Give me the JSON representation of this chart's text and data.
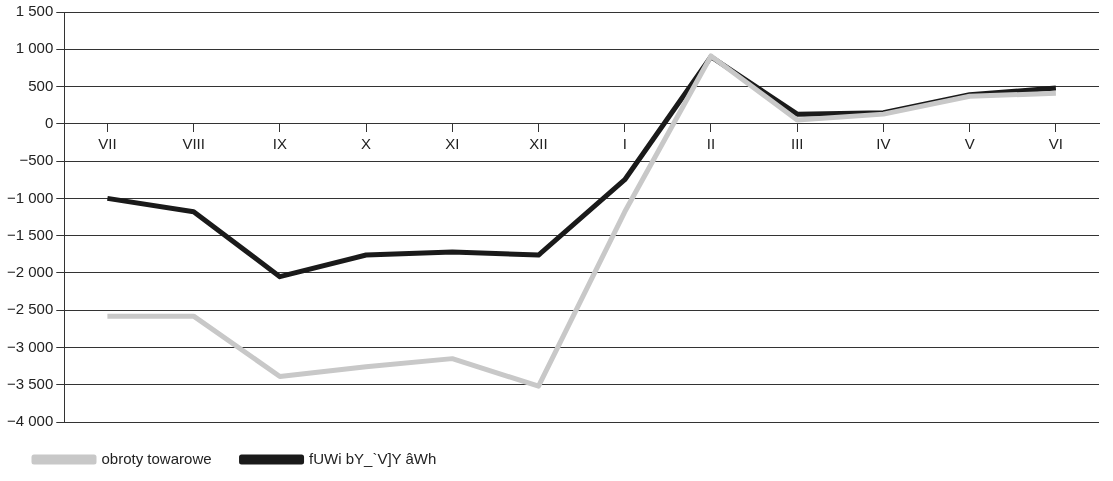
{
  "chart_data": {
    "type": "line",
    "categories": [
      "VII",
      "VIII",
      "IX",
      "X",
      "XI",
      "XII",
      "I",
      "II",
      "III",
      "IV",
      "V",
      "VI"
    ],
    "series": [
      {
        "name": "obroty towarowe",
        "color": "#c8c8c8",
        "values": [
          -2580,
          -2580,
          -3390,
          -3260,
          -3150,
          -3520,
          -1180,
          910,
          50,
          130,
          370,
          410
        ]
      },
      {
        "name": "fUWi bY_`V]Y âWh",
        "color": "#1a1a1a",
        "values": [
          -1000,
          -1180,
          -2050,
          -1760,
          -1720,
          -1760,
          -750,
          900,
          130,
          150,
          390,
          480
        ]
      }
    ],
    "ylim": [
      -4000,
      1500
    ],
    "yticks": [
      {
        "value": -4000,
        "label": "−4 000"
      },
      {
        "value": -3500,
        "label": "−3 500"
      },
      {
        "value": -3000,
        "label": "−3 000"
      },
      {
        "value": -2500,
        "label": "−2 500"
      },
      {
        "value": -2000,
        "label": "−2 000"
      },
      {
        "value": -1500,
        "label": "−1 500"
      },
      {
        "value": -1000,
        "label": "−1 000"
      },
      {
        "value": -500,
        "label": "−500"
      },
      {
        "value": 0,
        "label": "0"
      },
      {
        "value": 500,
        "label": "500"
      },
      {
        "value": 1000,
        "label": "1 000"
      },
      {
        "value": 1500,
        "label": "1 500"
      }
    ],
    "grid": "y",
    "legend": "bottom",
    "marker": "none",
    "line_style": "solid"
  }
}
